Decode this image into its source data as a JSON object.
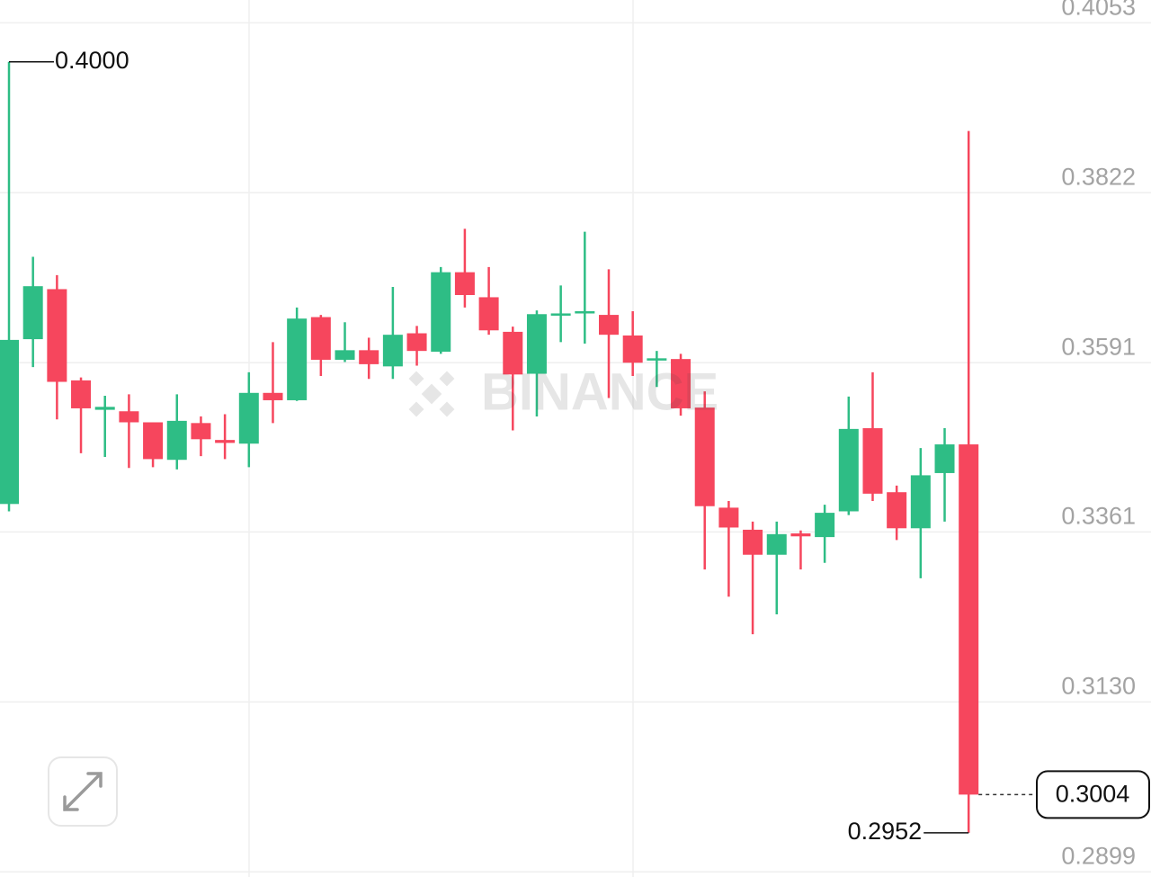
{
  "chart_data": {
    "type": "candlestick",
    "watermark": "BINANCE",
    "up_color": "#2ebd85",
    "down_color": "#f6465d",
    "ylim": [
      0.2892,
      0.4084
    ],
    "yticks": [
      0.4053,
      0.3822,
      0.3591,
      0.3361,
      {
        "value": 0.313,
        "label": "0.3130"
      },
      0.2899
    ],
    "grid": true,
    "high_annotation": {
      "value": 0.4,
      "label": "0.4000"
    },
    "low_annotation": 0.2952,
    "last_price": 0.3004,
    "open": [
      0.3399,
      0.3623,
      0.3691,
      0.3567,
      0.3527,
      0.3525,
      0.351,
      0.3459,
      0.3509,
      0.3486,
      0.3481,
      0.355,
      0.354,
      0.3653,
      0.3595,
      0.3608,
      0.3586,
      0.3631,
      0.3606,
      0.3714,
      0.368,
      0.3633,
      0.3576,
      0.3656,
      0.3658,
      0.3656,
      0.3628,
      0.3594,
      0.3596,
      0.353,
      0.3394,
      0.3364,
      0.333,
      0.3359,
      0.3354,
      0.3389,
      0.3502,
      0.3415,
      0.3366,
      0.3441,
      0.348
    ],
    "high": [
      0.4,
      0.3735,
      0.371,
      0.3571,
      0.3546,
      0.3548,
      0.351,
      0.3548,
      0.3518,
      0.3521,
      0.3578,
      0.3619,
      0.3666,
      0.3656,
      0.3646,
      0.3625,
      0.3694,
      0.3641,
      0.3721,
      0.3773,
      0.3721,
      0.364,
      0.3662,
      0.3696,
      0.3769,
      0.3718,
      0.3661,
      0.3607,
      0.3603,
      0.3552,
      0.3403,
      0.3375,
      0.3375,
      0.3363,
      0.3398,
      0.3545,
      0.3578,
      0.3424,
      0.3475,
      0.3502,
      0.3906
    ],
    "low": [
      0.3389,
      0.3585,
      0.3514,
      0.3468,
      0.3463,
      0.3448,
      0.3449,
      0.3446,
      0.3464,
      0.346,
      0.3449,
      0.3509,
      0.3539,
      0.3573,
      0.3592,
      0.3569,
      0.3569,
      0.3587,
      0.3603,
      0.3666,
      0.3629,
      0.3499,
      0.3518,
      0.3619,
      0.3617,
      0.3543,
      0.3573,
      0.3558,
      0.3519,
      0.331,
      0.3273,
      0.3222,
      0.3249,
      0.331,
      0.3319,
      0.3384,
      0.3403,
      0.335,
      0.3298,
      0.3375,
      0.2952
    ],
    "close": [
      0.3622,
      0.3695,
      0.3565,
      0.3529,
      0.3531,
      0.351,
      0.346,
      0.3512,
      0.3487,
      0.3482,
      0.355,
      0.354,
      0.3651,
      0.3595,
      0.3608,
      0.3589,
      0.3629,
      0.3607,
      0.3714,
      0.3683,
      0.3635,
      0.3575,
      0.3657,
      0.3658,
      0.3661,
      0.3629,
      0.3591,
      0.3597,
      0.3529,
      0.3396,
      0.3367,
      0.333,
      0.3358,
      0.3355,
      0.3387,
      0.3501,
      0.3413,
      0.3366,
      0.3438,
      0.348,
      0.3004
    ]
  }
}
